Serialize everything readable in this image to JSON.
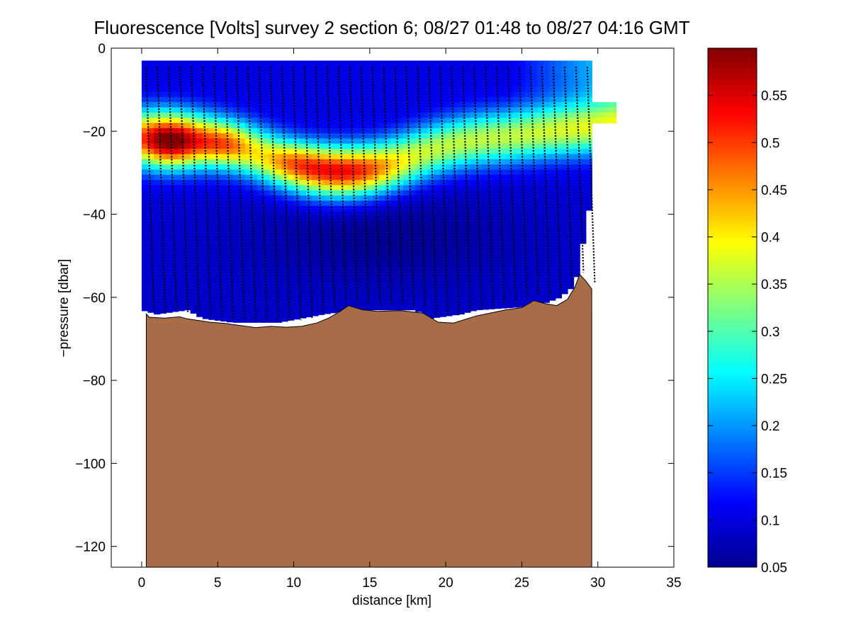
{
  "chart_data": {
    "type": "heatmap",
    "title": "Fluorescence [Volts] survey 2 section 6; 08/27 01:48 to 08/27 04:16 GMT",
    "xlabel": "distance [km]",
    "ylabel": "−pressure [dbar]",
    "xlim": [
      -2,
      35
    ],
    "ylim": [
      -125,
      0
    ],
    "xticks": [
      0,
      5,
      10,
      15,
      20,
      25,
      30,
      35
    ],
    "xtick_labels": [
      "0",
      "5",
      "10",
      "15",
      "20",
      "25",
      "30",
      "35"
    ],
    "yticks": [
      0,
      -20,
      -40,
      -60,
      -80,
      -100,
      -120
    ],
    "ytick_labels": [
      "0",
      "−20",
      "−40",
      "−60",
      "−80",
      "−100",
      "−120"
    ],
    "colorbar": {
      "colormap": "jet",
      "range": [
        0.05,
        0.6
      ],
      "ticks": [
        0.05,
        0.1,
        0.15,
        0.2,
        0.25,
        0.3,
        0.35,
        0.4,
        0.45,
        0.5,
        0.55
      ],
      "tick_labels": [
        "0.05",
        "0.1",
        "0.15",
        "0.2",
        "0.25",
        "0.3",
        "0.35",
        "0.4",
        "0.45",
        "0.5",
        "0.55"
      ]
    },
    "seafloor_color": "#a86c48",
    "bathymetry": {
      "x": [
        0.3,
        0.5,
        1.5,
        2.5,
        3.0,
        4.5,
        5.5,
        6.5,
        7.5,
        8.5,
        9.5,
        10.5,
        11.5,
        12.3,
        13.0,
        13.6,
        14.5,
        15.5,
        17.0,
        18.5,
        19.5,
        20.5,
        22.0,
        24.0,
        25.0,
        25.8,
        26.5,
        27.3,
        28.0,
        28.5,
        28.8,
        29.2,
        29.6
      ],
      "depth": [
        -64,
        -64.8,
        -65,
        -64.7,
        -65.2,
        -66,
        -66.3,
        -66.8,
        -67.3,
        -67,
        -67.2,
        -67,
        -66.2,
        -65,
        -63.5,
        -62,
        -63,
        -63.4,
        -63.2,
        -63.8,
        -66,
        -66.2,
        -64.5,
        -63,
        -62.5,
        -60.8,
        -61.5,
        -62,
        -60.5,
        -57.5,
        -54.5,
        -56,
        -58
      ]
    },
    "data_extent": {
      "x": [
        0,
        30.8
      ],
      "top": -3,
      "bottom_by_x": {
        "x": [
          0,
          1,
          3,
          4,
          6,
          9,
          12,
          14,
          18,
          19,
          21,
          22,
          26,
          27.5,
          28.5,
          29.5
        ],
        "depth": [
          -63,
          -64,
          -63,
          -65,
          -66,
          -66,
          -64,
          -63,
          -63,
          -65,
          -64,
          -63,
          -62,
          -60,
          -57,
          -37
        ]
      }
    },
    "field_description": "Background ~0.1 V at depth, subsurface chlorophyll maximum layer near -20 to -30 dbar peaking ~0.6 V at x~1-3 km and ~0.5 V at x~13 km, near-surface rising to ~0.3 V at x>26 km",
    "profiles": {
      "count": 40,
      "x_start": 0.3,
      "x_end": 29.3,
      "marker": "black dot"
    }
  }
}
